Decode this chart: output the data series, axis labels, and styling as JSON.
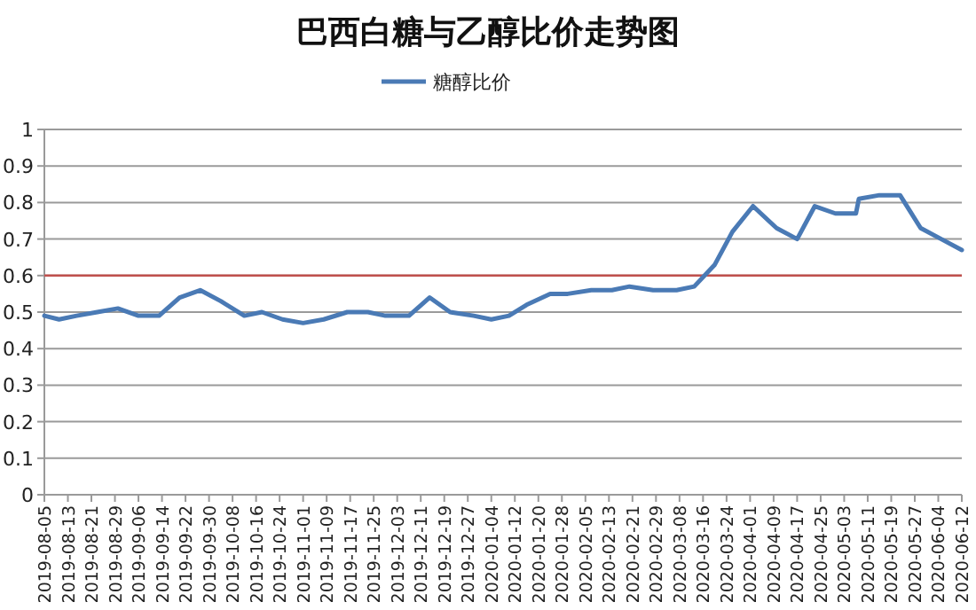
{
  "chart_data": {
    "type": "line",
    "title": "巴西白糖与乙醇比价走势图",
    "x": [
      "2019-08-05",
      "2019-08-10",
      "2019-08-16",
      "2019-08-23",
      "2019-08-30",
      "2019-09-06",
      "2019-09-13",
      "2019-09-20",
      "2019-09-27",
      "2019-10-04",
      "2019-10-12",
      "2019-10-18",
      "2019-10-25",
      "2019-11-01",
      "2019-11-08",
      "2019-11-16",
      "2019-11-23",
      "2019-11-29",
      "2019-12-07",
      "2019-12-14",
      "2019-12-21",
      "2019-12-29",
      "2020-01-04",
      "2020-01-10",
      "2020-01-16",
      "2020-01-24",
      "2020-01-30",
      "2020-02-07",
      "2020-02-14",
      "2020-02-20",
      "2020-02-28",
      "2020-03-07",
      "2020-03-13",
      "2020-03-20",
      "2020-03-26",
      "2020-04-02",
      "2020-04-10",
      "2020-04-17",
      "2020-04-23",
      "2020-04-30",
      "2020-05-07",
      "2020-05-08",
      "2020-05-15",
      "2020-05-22",
      "2020-05-29",
      "2020-06-05",
      "2020-06-12"
    ],
    "series": [
      {
        "name": "糖醇比价",
        "color": "#4a7ab5",
        "values": [
          0.49,
          0.48,
          0.49,
          0.5,
          0.51,
          0.49,
          0.49,
          0.54,
          0.56,
          0.53,
          0.49,
          0.5,
          0.48,
          0.47,
          0.48,
          0.5,
          0.5,
          0.49,
          0.49,
          0.54,
          0.5,
          0.49,
          0.48,
          0.49,
          0.52,
          0.55,
          0.55,
          0.56,
          0.56,
          0.57,
          0.56,
          0.56,
          0.57,
          0.63,
          0.72,
          0.79,
          0.73,
          0.7,
          0.79,
          0.77,
          0.77,
          0.81,
          0.82,
          0.82,
          0.73,
          0.7,
          0.67
        ]
      }
    ],
    "xlim": [
      "2019-08-05",
      "2020-06-12"
    ],
    "xticks": [
      "2019-08-05",
      "2019-08-13",
      "2019-08-21",
      "2019-08-29",
      "2019-09-06",
      "2019-09-14",
      "2019-09-22",
      "2019-09-30",
      "2019-10-08",
      "2019-10-16",
      "2019-10-24",
      "2019-11-01",
      "2019-11-09",
      "2019-11-17",
      "2019-11-25",
      "2019-12-03",
      "2019-12-11",
      "2019-12-19",
      "2019-12-27",
      "2020-01-04",
      "2020-01-12",
      "2020-01-20",
      "2020-01-28",
      "2020-02-05",
      "2020-02-13",
      "2020-02-21",
      "2020-02-29",
      "2020-03-08",
      "2020-03-16",
      "2020-03-24",
      "2020-04-01",
      "2020-04-09",
      "2020-04-17",
      "2020-04-25",
      "2020-05-03",
      "2020-05-11",
      "2020-05-19",
      "2020-05-27",
      "2020-06-04",
      "2020-06-12"
    ],
    "ylim": [
      0,
      1
    ],
    "yticks": [
      0,
      0.1,
      0.2,
      0.3,
      0.4,
      0.5,
      0.6,
      0.7,
      0.8,
      0.9,
      1
    ],
    "ref_lines": [
      {
        "axis": "y",
        "value": 0.6,
        "color": "#c0504d"
      }
    ],
    "grid": "y",
    "legend": "top",
    "marker": "none",
    "line_style": "solid"
  }
}
